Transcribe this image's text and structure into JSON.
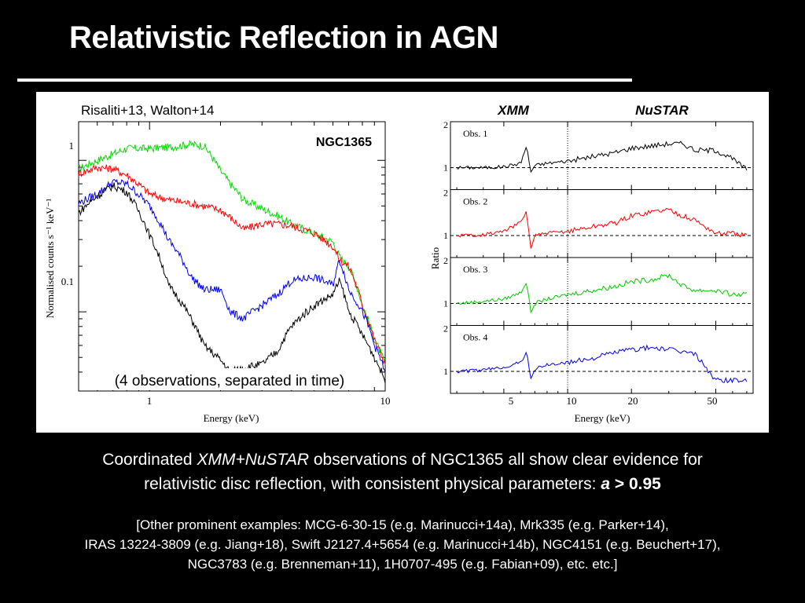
{
  "slide": {
    "title": "Relativistic Reflection in AGN"
  },
  "figure": {
    "left_panel": {
      "reference": "Risaliti+13, Walton+14",
      "source_name": "NGC1365",
      "ylabel": "Normalised counts s⁻¹ keV⁻¹",
      "xlabel": "Energy (keV)",
      "yticks": [
        "1",
        "0.1"
      ],
      "xticks": [
        "1",
        "10"
      ],
      "note": "(4 observations, separated in time)"
    },
    "right_panel": {
      "header_left": "XMM",
      "header_right": "NuSTAR",
      "ylabel": "Ratio",
      "xlabel": "Energy (keV)",
      "xticks": [
        "5",
        "10",
        "20",
        "50"
      ],
      "subpanels": [
        {
          "label": "Obs. 1",
          "ytick_top": "2",
          "ytick_mid": "1"
        },
        {
          "label": "Obs. 2",
          "ytick_top": "2",
          "ytick_mid": "1"
        },
        {
          "label": "Obs. 3",
          "ytick_top": "2",
          "ytick_mid": "1"
        },
        {
          "label": "Obs. 4",
          "ytick_top": "2",
          "ytick_mid": "1"
        }
      ]
    }
  },
  "chart_data": [
    {
      "type": "line",
      "title": "NGC1365",
      "xlabel": "Energy (keV)",
      "ylabel": "Normalised counts s⁻¹ keV⁻¹",
      "xscale": "log",
      "yscale": "log",
      "xlim": [
        0.5,
        10
      ],
      "ylim": [
        0.03,
        1.8
      ],
      "x": [
        0.5,
        0.6,
        0.7,
        0.8,
        1.0,
        1.2,
        1.5,
        1.7,
        2.0,
        2.2,
        2.5,
        3.0,
        3.5,
        4.0,
        5.0,
        6.0,
        6.4,
        7.0,
        8.0,
        9.0,
        10.0
      ],
      "series": [
        {
          "color": "#00dd00",
          "values": [
            0.88,
            1.0,
            1.1,
            1.2,
            1.2,
            1.22,
            1.28,
            1.25,
            0.85,
            0.7,
            0.55,
            0.48,
            0.43,
            0.38,
            0.33,
            0.29,
            0.23,
            0.2,
            0.11,
            0.065,
            0.045
          ]
        },
        {
          "color": "#ff0000",
          "values": [
            0.82,
            0.9,
            0.88,
            0.8,
            0.6,
            0.55,
            0.52,
            0.5,
            0.47,
            0.42,
            0.35,
            0.38,
            0.38,
            0.37,
            0.33,
            0.27,
            0.22,
            0.2,
            0.11,
            0.065,
            0.045
          ]
        },
        {
          "color": "#0000ee",
          "values": [
            0.52,
            0.6,
            0.72,
            0.7,
            0.5,
            0.3,
            0.17,
            0.14,
            0.14,
            0.1,
            0.09,
            0.11,
            0.13,
            0.16,
            0.17,
            0.15,
            0.22,
            0.14,
            0.1,
            0.06,
            0.04
          ]
        },
        {
          "color": "#000000",
          "values": [
            0.45,
            0.58,
            0.68,
            0.62,
            0.32,
            0.15,
            0.09,
            0.06,
            0.048,
            0.04,
            0.043,
            0.045,
            0.055,
            0.08,
            0.11,
            0.13,
            0.16,
            0.1,
            0.07,
            0.05,
            0.035
          ]
        }
      ]
    },
    {
      "type": "line",
      "ylabel": "Ratio",
      "xlabel": "Energy (keV)",
      "xscale": "log",
      "xlim": [
        2.8,
        75
      ],
      "ylim_per_panel": [
        0.55,
        2.0
      ],
      "x": [
        3,
        4,
        5,
        6,
        6.4,
        6.7,
        7,
        8,
        10,
        13,
        17,
        20,
        25,
        30,
        35,
        40,
        50,
        60,
        70
      ],
      "series": [
        {
          "name": "Obs. 1",
          "color": "#000000",
          "values": [
            1.0,
            1.0,
            1.02,
            1.1,
            1.5,
            0.9,
            1.05,
            1.1,
            1.15,
            1.25,
            1.35,
            1.45,
            1.5,
            1.55,
            1.55,
            1.4,
            1.4,
            1.2,
            0.95
          ]
        },
        {
          "name": "Obs. 2",
          "color": "#ff0000",
          "values": [
            1.0,
            1.02,
            1.1,
            1.3,
            1.55,
            0.7,
            1.0,
            1.05,
            1.1,
            1.2,
            1.3,
            1.45,
            1.55,
            1.6,
            1.45,
            1.35,
            1.05,
            1.05,
            1.0
          ]
        },
        {
          "name": "Obs. 3",
          "color": "#00cc00",
          "values": [
            1.0,
            1.05,
            1.1,
            1.25,
            1.5,
            0.8,
            1.0,
            1.1,
            1.2,
            1.3,
            1.4,
            1.5,
            1.55,
            1.65,
            1.4,
            1.3,
            1.3,
            1.2,
            1.2
          ]
        },
        {
          "name": "Obs. 4",
          "color": "#0000ee",
          "values": [
            1.0,
            1.03,
            1.1,
            1.2,
            1.45,
            0.85,
            1.05,
            1.15,
            1.2,
            1.3,
            1.45,
            1.5,
            1.55,
            1.5,
            1.45,
            1.4,
            0.8,
            0.8,
            0.8
          ]
        }
      ]
    }
  ],
  "caption": {
    "line1_pre": "Coordinated ",
    "line1_it": "XMM+NuSTAR",
    "line1_post": " observations of NGC1365 all show clear evidence for",
    "line2_pre": "relativistic disc reflection, with consistent physical parameters: ",
    "line2_a": "a",
    "line2_post": " > 0.95"
  },
  "refs": {
    "line1": "[Other prominent examples: MCG-6-30-15 (e.g. Marinucci+14a), Mrk335 (e.g. Parker+14),",
    "line2": "IRAS 13224-3809 (e.g. Jiang+18), Swift J2127.4+5654 (e.g. Marinucci+14b), NGC4151 (e.g. Beuchert+17),",
    "line3": "NGC3783 (e.g. Brenneman+11), 1H0707-495 (e.g. Fabian+09), etc. etc.]"
  }
}
